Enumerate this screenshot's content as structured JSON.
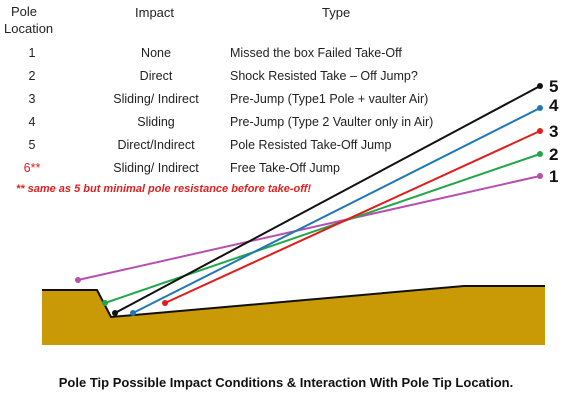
{
  "headers": {
    "pole_location": "Pole\nLocation",
    "impact": "Impact",
    "type": "Type"
  },
  "rows": [
    {
      "location": "1",
      "impact": "None",
      "type": "Missed the box Failed Take-Off"
    },
    {
      "location": "2",
      "impact": "Direct",
      "type": "Shock Resisted Take – Off  Jump?"
    },
    {
      "location": "3",
      "impact": "Sliding/ Indirect",
      "type": "Pre-Jump (Type1 Pole + vaulter Air)"
    },
    {
      "location": "4",
      "impact": "Sliding",
      "type": "Pre-Jump (Type 2 Vaulter only in Air)"
    },
    {
      "location": "5",
      "impact": "Direct/Indirect",
      "type": "Pole Resisted Take-Off Jump"
    },
    {
      "location": "6**",
      "impact": "Sliding/ Indirect",
      "type": "Free Take-Off Jump"
    }
  ],
  "note": "** same as 5 but minimal pole resistance before take-off!",
  "pole_labels": [
    "5",
    "4",
    "3",
    "2",
    "1"
  ],
  "colors": {
    "pole_5": "#111111",
    "pole_4": "#1f77b4",
    "pole_3": "#e01c1c",
    "pole_2": "#22a64a",
    "pole_1": "#b84fb0",
    "ground": "#c99a06",
    "ground_edge": "#111111",
    "note_red": "#e02020"
  },
  "caption": "Pole Tip Possible Impact Conditions  & Interaction With Pole Tip Location."
}
